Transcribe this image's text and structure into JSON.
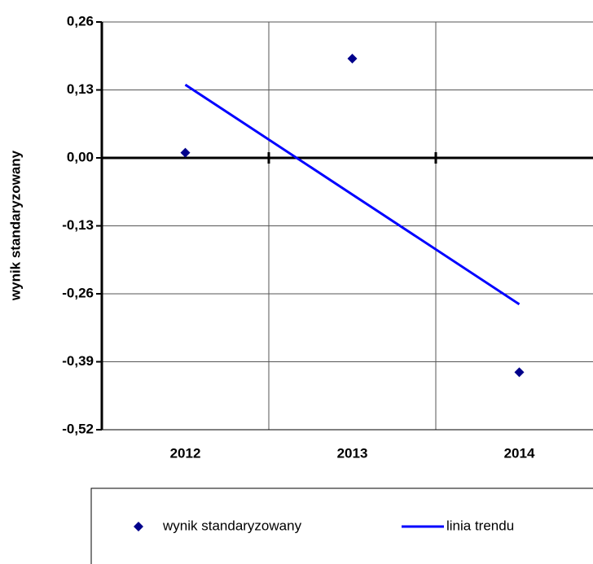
{
  "chart_data": {
    "type": "scatter",
    "y_label": "wynik standaryzowany",
    "categories": [
      "2012",
      "2013",
      "2014"
    ],
    "series": [
      {
        "name": "wynik standaryzowany",
        "color": "#00008b",
        "values": [
          0.01,
          0.19,
          -0.41
        ],
        "kind": "marker"
      },
      {
        "name": "linia trendu",
        "color": "#0000ff",
        "values": [
          0.14,
          -0.07,
          -0.28
        ],
        "kind": "line"
      }
    ],
    "ylim": [
      -0.52,
      0.26
    ],
    "yticks": [
      {
        "value": 0.26,
        "label": "0,26"
      },
      {
        "value": 0.13,
        "label": "0,13"
      },
      {
        "value": 0,
        "label": "0,00"
      },
      {
        "value": -0.13,
        "label": "-0,13"
      },
      {
        "value": -0.26,
        "label": "-0,26"
      },
      {
        "value": -0.39,
        "label": "-0,39"
      },
      {
        "value": -0.52,
        "label": "-0,52"
      }
    ],
    "grid": true
  }
}
